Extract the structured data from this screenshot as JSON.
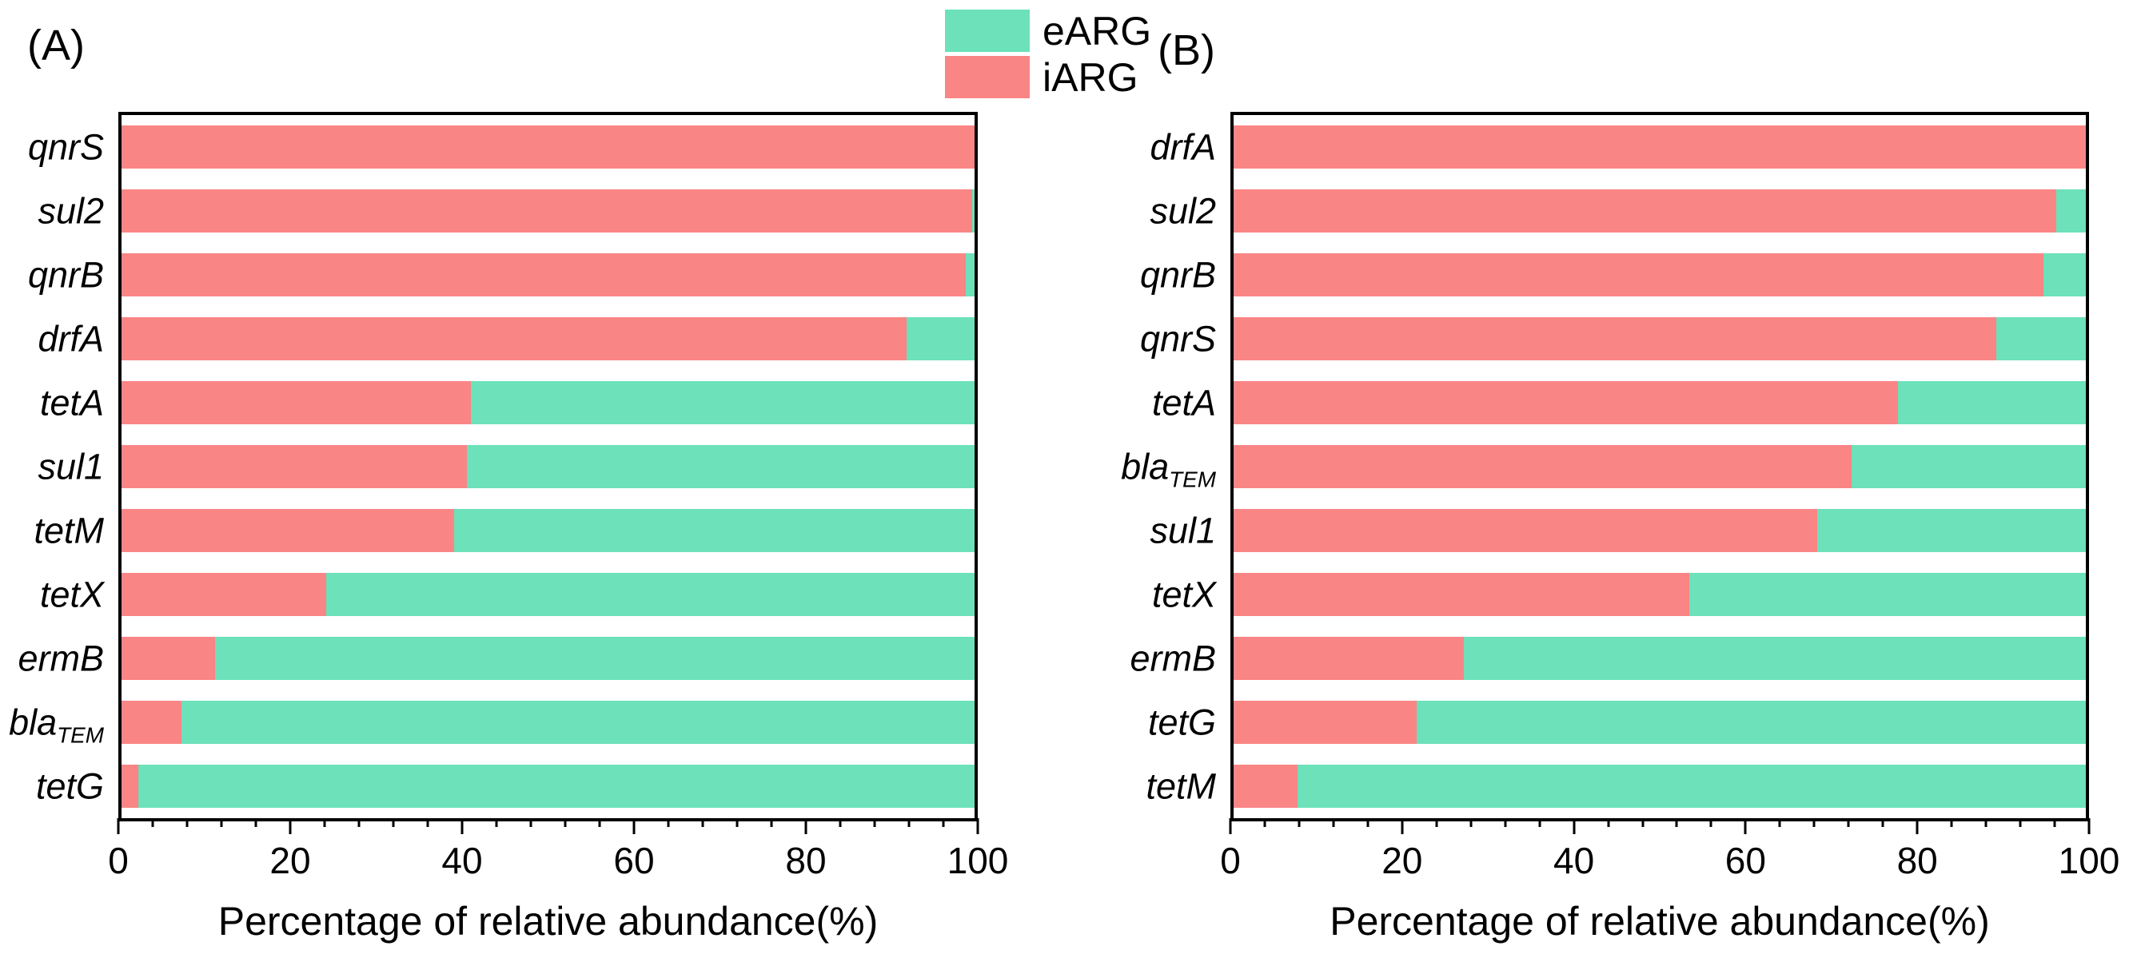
{
  "legend": {
    "items": [
      {
        "label": "eARG",
        "color": "#6CE1BA"
      },
      {
        "label": "iARG",
        "color": "#FA8585"
      }
    ]
  },
  "chart_data": [
    {
      "type": "bar",
      "panel_label": "(A)",
      "orientation": "horizontal",
      "stacked": true,
      "xlabel": "Percentage of relative abundance(%)",
      "xlim": [
        0,
        100
      ],
      "xticks": [
        0,
        20,
        40,
        60,
        80,
        100
      ],
      "minor_tick_step": 4,
      "grid": false,
      "legend_position": "top-center-shared",
      "categories": [
        {
          "label": "qnrS"
        },
        {
          "label": "sul2"
        },
        {
          "label": "qnrB"
        },
        {
          "label": "drfA"
        },
        {
          "label": "tetA"
        },
        {
          "label": "sul1"
        },
        {
          "label": "tetM"
        },
        {
          "label": "tetX"
        },
        {
          "label": "ermB"
        },
        {
          "label": "bla",
          "sub": "TEM"
        },
        {
          "label": "tetG"
        }
      ],
      "series": [
        {
          "name": "iARG",
          "color": "#FA8585",
          "values": [
            100,
            99.7,
            99,
            92,
            41,
            40.5,
            39,
            24,
            11,
            7,
            2
          ]
        },
        {
          "name": "eARG",
          "color": "#6CE1BA",
          "values": [
            0,
            0.3,
            1,
            8,
            59,
            59.5,
            61,
            76,
            89,
            93,
            98
          ]
        }
      ]
    },
    {
      "type": "bar",
      "panel_label": "(B)",
      "orientation": "horizontal",
      "stacked": true,
      "xlabel": "Percentage of relative abundance(%)",
      "xlim": [
        0,
        100
      ],
      "xticks": [
        0,
        20,
        40,
        60,
        80,
        100
      ],
      "minor_tick_step": 4,
      "grid": false,
      "legend_position": "top-center-shared",
      "categories": [
        {
          "label": "drfA"
        },
        {
          "label": "sul2"
        },
        {
          "label": "qnrB"
        },
        {
          "label": "qnrS"
        },
        {
          "label": "tetA"
        },
        {
          "label": "bla",
          "sub": "TEM"
        },
        {
          "label": "sul1"
        },
        {
          "label": "tetX"
        },
        {
          "label": "ermB"
        },
        {
          "label": "tetG"
        },
        {
          "label": "tetM"
        }
      ],
      "series": [
        {
          "name": "iARG",
          "color": "#FA8585",
          "values": [
            100,
            96.5,
            95,
            89.5,
            78,
            72.5,
            68.5,
            53.5,
            27,
            21.5,
            7.5
          ]
        },
        {
          "name": "eARG",
          "color": "#6CE1BA",
          "values": [
            0,
            3.5,
            5,
            10.5,
            22,
            27.5,
            31.5,
            46.5,
            73,
            78.5,
            92.5
          ]
        }
      ]
    }
  ]
}
